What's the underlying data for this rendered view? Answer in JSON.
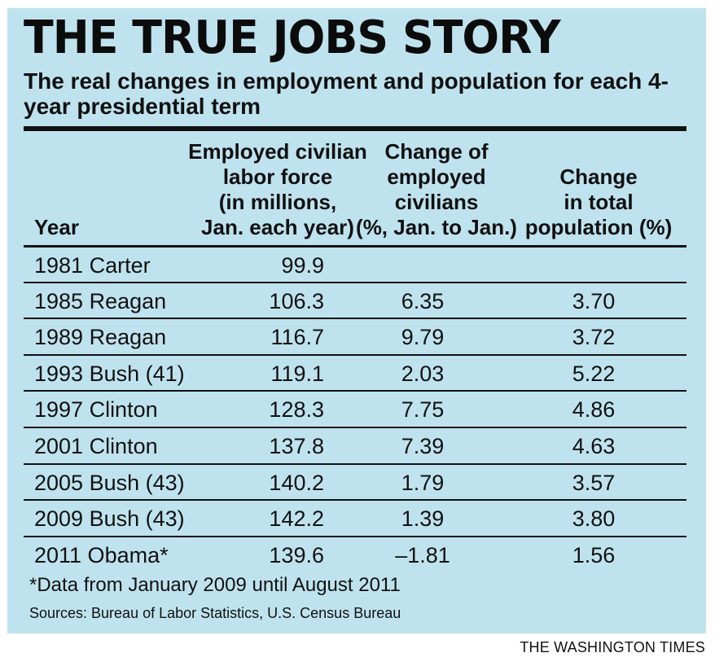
{
  "chart_data": {
    "type": "table",
    "title": "THE TRUE JOBS STORY",
    "subtitle": "The real changes in employment and population for each 4-year presidential term",
    "columns": [
      {
        "key": "year",
        "label": [
          "Year"
        ]
      },
      {
        "key": "labor",
        "label": [
          "Employed civilian",
          "labor force",
          "(in millions,",
          "Jan. each year)"
        ]
      },
      {
        "key": "change",
        "label": [
          "Change of",
          "employed",
          "civilians",
          "(%, Jan. to Jan.)"
        ]
      },
      {
        "key": "pop",
        "label": [
          "Change",
          "in total",
          "population (%)"
        ]
      }
    ],
    "rows": [
      {
        "year": "1981 Carter",
        "labor": "99.9",
        "change": "",
        "pop": ""
      },
      {
        "year": "1985 Reagan",
        "labor": "106.3",
        "change": "6.35",
        "pop": "3.70"
      },
      {
        "year": "1989 Reagan",
        "labor": "116.7",
        "change": "9.79",
        "pop": "3.72"
      },
      {
        "year": "1993 Bush (41)",
        "labor": "119.1",
        "change": "2.03",
        "pop": "5.22"
      },
      {
        "year": "1997 Clinton",
        "labor": "128.3",
        "change": "7.75",
        "pop": "4.86"
      },
      {
        "year": "2001 Clinton",
        "labor": "137.8",
        "change": "7.39",
        "pop": "4.63"
      },
      {
        "year": "2005 Bush (43)",
        "labor": "140.2",
        "change": "1.79",
        "pop": "3.57"
      },
      {
        "year": "2009 Bush (43)",
        "labor": "142.2",
        "change": "1.39",
        "pop": "3.80"
      },
      {
        "year": "2011 Obama*",
        "labor": "139.6",
        "change": "–1.81",
        "pop": "1.56"
      }
    ],
    "footnote": "*Data from January 2009 until August 2011",
    "sources": "Sources: Bureau of Labor Statistics, U.S. Census Bureau",
    "credit": "THE WASHINGTON TIMES"
  },
  "colors": {
    "panel_background": "#bfe3ee",
    "text": "#111111",
    "rules": "#111111"
  }
}
